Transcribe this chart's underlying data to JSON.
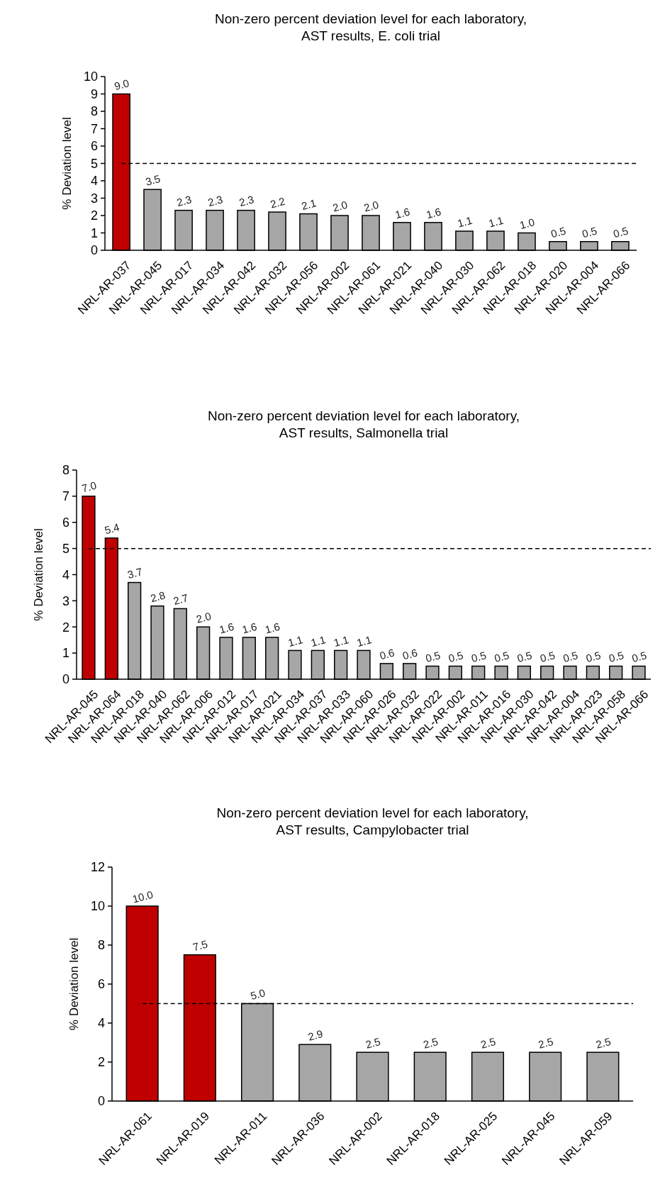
{
  "chart_data": [
    {
      "type": "bar",
      "title": "Non-zero percent deviation level for each laboratory,\nAST results, E. coli trial",
      "ylabel": "% Deviation level",
      "categories": [
        "NRL-AR-037",
        "NRL-AR-045",
        "NRL-AR-017",
        "NRL-AR-034",
        "NRL-AR-042",
        "NRL-AR-032",
        "NRL-AR-056",
        "NRL-AR-002",
        "NRL-AR-061",
        "NRL-AR-021",
        "NRL-AR-040",
        "NRL-AR-030",
        "NRL-AR-062",
        "NRL-AR-018",
        "NRL-AR-020",
        "NRL-AR-004",
        "NRL-AR-066"
      ],
      "values": [
        9.0,
        3.5,
        2.3,
        2.3,
        2.3,
        2.2,
        2.1,
        2.0,
        2.0,
        1.6,
        1.6,
        1.1,
        1.1,
        1.0,
        0.5,
        0.5,
        0.5
      ],
      "value_labels": [
        "9.0",
        "3.5",
        "2.3",
        "2.3",
        "2.3",
        "2.2",
        "2.1",
        "2.0",
        "2.0",
        "1.6",
        "1.6",
        "1.1",
        "1.1",
        "1.0",
        "0.5",
        "0.5",
        "0.5"
      ],
      "colors": [
        "#c00000",
        "#a6a6a6",
        "#a6a6a6",
        "#a6a6a6",
        "#a6a6a6",
        "#a6a6a6",
        "#a6a6a6",
        "#a6a6a6",
        "#a6a6a6",
        "#a6a6a6",
        "#a6a6a6",
        "#a6a6a6",
        "#a6a6a6",
        "#a6a6a6",
        "#a6a6a6",
        "#a6a6a6",
        "#a6a6a6"
      ],
      "ylim": [
        0,
        10
      ],
      "yticks": [
        0,
        1,
        2,
        3,
        4,
        5,
        6,
        7,
        8,
        9,
        10
      ],
      "ref_lines": [
        {
          "axis": "y",
          "value": 5,
          "color": "#000000",
          "line_style": "dashed"
        }
      ]
    },
    {
      "type": "bar",
      "title": "Non-zero percent deviation level for each laboratory,\nAST results, Salmonella trial",
      "ylabel": "% Deviation level",
      "categories": [
        "NRL-AR-045",
        "NRL-AR-064",
        "NRL-AR-018",
        "NRL-AR-040",
        "NRL-AR-062",
        "NRL-AR-006",
        "NRL-AR-012",
        "NRL-AR-017",
        "NRL-AR-021",
        "NRL-AR-034",
        "NRL-AR-037",
        "NRL-AR-033",
        "NRL-AR-060",
        "NRL-AR-026",
        "NRL-AR-032",
        "NRL-AR-022",
        "NRL-AR-002",
        "NRL-AR-011",
        "NRL-AR-016",
        "NRL-AR-030",
        "NRL-AR-042",
        "NRL-AR-004",
        "NRL-AR-023",
        "NRL-AR-058",
        "NRL-AR-066"
      ],
      "values": [
        7.0,
        5.4,
        3.7,
        2.8,
        2.7,
        2.0,
        1.6,
        1.6,
        1.6,
        1.1,
        1.1,
        1.1,
        1.1,
        0.6,
        0.6,
        0.5,
        0.5,
        0.5,
        0.5,
        0.5,
        0.5,
        0.5,
        0.5,
        0.5,
        0.5
      ],
      "value_labels": [
        "7.0",
        "5.4",
        "3.7",
        "2.8",
        "2.7",
        "2.0",
        "1.6",
        "1.6",
        "1.6",
        "1.1",
        "1.1",
        "1.1",
        "1.1",
        "0.6",
        "0.6",
        "0.5",
        "0.5",
        "0.5",
        "0.5",
        "0.5",
        "0.5",
        "0.5",
        "0.5",
        "0.5",
        "0.5"
      ],
      "colors": [
        "#c00000",
        "#c00000",
        "#a6a6a6",
        "#a6a6a6",
        "#a6a6a6",
        "#a6a6a6",
        "#a6a6a6",
        "#a6a6a6",
        "#a6a6a6",
        "#a6a6a6",
        "#a6a6a6",
        "#a6a6a6",
        "#a6a6a6",
        "#a6a6a6",
        "#a6a6a6",
        "#a6a6a6",
        "#a6a6a6",
        "#a6a6a6",
        "#a6a6a6",
        "#a6a6a6",
        "#a6a6a6",
        "#a6a6a6",
        "#a6a6a6",
        "#a6a6a6",
        "#a6a6a6"
      ],
      "ylim": [
        0,
        8
      ],
      "yticks": [
        0,
        1,
        2,
        3,
        4,
        5,
        6,
        7,
        8
      ],
      "ref_lines": [
        {
          "axis": "y",
          "value": 5,
          "color": "#000000",
          "line_style": "dashed"
        }
      ]
    },
    {
      "type": "bar",
      "title": "Non-zero percent deviation level for each laboratory,\nAST results, Campylobacter trial",
      "ylabel": "% Deviation level",
      "categories": [
        "NRL-AR-061",
        "NRL-AR-019",
        "NRL-AR-011",
        "NRL-AR-036",
        "NRL-AR-002",
        "NRL-AR-018",
        "NRL-AR-025",
        "NRL-AR-045",
        "NRL-AR-059"
      ],
      "values": [
        10.0,
        7.5,
        5.0,
        2.9,
        2.5,
        2.5,
        2.5,
        2.5,
        2.5
      ],
      "value_labels": [
        "10.0",
        "7.5",
        "5.0",
        "2.9",
        "2.5",
        "2.5",
        "2.5",
        "2.5",
        "2.5"
      ],
      "colors": [
        "#c00000",
        "#c00000",
        "#a6a6a6",
        "#a6a6a6",
        "#a6a6a6",
        "#a6a6a6",
        "#a6a6a6",
        "#a6a6a6",
        "#a6a6a6"
      ],
      "ylim": [
        0,
        12
      ],
      "yticks": [
        0,
        2,
        4,
        6,
        8,
        10,
        12
      ],
      "ref_lines": [
        {
          "axis": "y",
          "value": 5,
          "color": "#000000",
          "line_style": "dashed"
        }
      ]
    }
  ]
}
